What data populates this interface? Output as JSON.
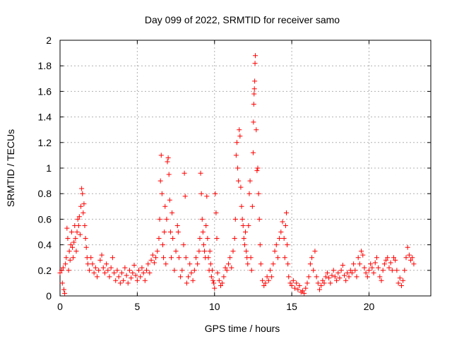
{
  "chart_data": {
    "type": "scatter",
    "title": "Day 099 of 2022, SRMTID for receiver samo",
    "xlabel": "GPS time / hours",
    "ylabel": "SRMTID / TECUs",
    "xlim": [
      0,
      24
    ],
    "ylim": [
      0,
      2
    ],
    "xticks": [
      0,
      5,
      10,
      15,
      20
    ],
    "xtick_labels": [
      "0",
      "5",
      "10",
      "15",
      "20"
    ],
    "yticks": [
      0,
      0.2,
      0.4,
      0.6,
      0.8,
      1,
      1.2,
      1.4,
      1.6,
      1.8,
      2
    ],
    "ytick_labels": [
      "0",
      "0.2",
      "0.4",
      "0.6",
      "0.8",
      "1",
      "1.2",
      "1.4",
      "1.6",
      "1.8",
      "2"
    ],
    "grid": true,
    "marker": "+",
    "series_color": "#ff0000",
    "series": [
      {
        "name": "SRMTID",
        "points": [
          [
            0.0,
            0.18
          ],
          [
            0.1,
            0.2
          ],
          [
            0.15,
            0.1
          ],
          [
            0.2,
            0.22
          ],
          [
            0.25,
            0.05
          ],
          [
            0.3,
            0.02
          ],
          [
            0.35,
            0.25
          ],
          [
            0.4,
            0.3
          ],
          [
            0.45,
            0.53
          ],
          [
            0.5,
            0.45
          ],
          [
            0.55,
            0.2
          ],
          [
            0.6,
            0.35
          ],
          [
            0.65,
            0.28
          ],
          [
            0.7,
            0.4
          ],
          [
            0.75,
            0.5
          ],
          [
            0.8,
            0.38
          ],
          [
            0.85,
            0.3
          ],
          [
            0.9,
            0.42
          ],
          [
            0.95,
            0.55
          ],
          [
            1.0,
            0.45
          ],
          [
            1.05,
            0.35
          ],
          [
            1.1,
            0.5
          ],
          [
            1.15,
            0.6
          ],
          [
            1.2,
            0.55
          ],
          [
            1.25,
            0.62
          ],
          [
            1.3,
            0.48
          ],
          [
            1.35,
            0.7
          ],
          [
            1.4,
            0.84
          ],
          [
            1.45,
            0.8
          ],
          [
            1.5,
            0.65
          ],
          [
            1.55,
            0.72
          ],
          [
            1.6,
            0.55
          ],
          [
            1.65,
            0.45
          ],
          [
            1.7,
            0.38
          ],
          [
            1.75,
            0.3
          ],
          [
            1.8,
            0.25
          ],
          [
            1.9,
            0.2
          ],
          [
            2.0,
            0.3
          ],
          [
            2.1,
            0.25
          ],
          [
            2.2,
            0.18
          ],
          [
            2.3,
            0.22
          ],
          [
            2.4,
            0.15
          ],
          [
            2.5,
            0.2
          ],
          [
            2.6,
            0.28
          ],
          [
            2.7,
            0.32
          ],
          [
            2.8,
            0.22
          ],
          [
            2.9,
            0.18
          ],
          [
            3.0,
            0.25
          ],
          [
            3.1,
            0.2
          ],
          [
            3.2,
            0.15
          ],
          [
            3.3,
            0.22
          ],
          [
            3.4,
            0.3
          ],
          [
            3.5,
            0.18
          ],
          [
            3.6,
            0.12
          ],
          [
            3.7,
            0.2
          ],
          [
            3.8,
            0.15
          ],
          [
            3.9,
            0.1
          ],
          [
            4.0,
            0.18
          ],
          [
            4.1,
            0.12
          ],
          [
            4.2,
            0.22
          ],
          [
            4.3,
            0.16
          ],
          [
            4.4,
            0.1
          ],
          [
            4.5,
            0.2
          ],
          [
            4.6,
            0.14
          ],
          [
            4.7,
            0.18
          ],
          [
            4.8,
            0.24
          ],
          [
            4.9,
            0.16
          ],
          [
            5.0,
            0.12
          ],
          [
            5.1,
            0.2
          ],
          [
            5.2,
            0.15
          ],
          [
            5.3,
            0.22
          ],
          [
            5.4,
            0.18
          ],
          [
            5.5,
            0.12
          ],
          [
            5.6,
            0.2
          ],
          [
            5.7,
            0.25
          ],
          [
            5.8,
            0.18
          ],
          [
            5.9,
            0.28
          ],
          [
            6.0,
            0.32
          ],
          [
            6.1,
            0.26
          ],
          [
            6.2,
            0.3
          ],
          [
            6.3,
            0.35
          ],
          [
            6.4,
            0.45
          ],
          [
            6.45,
            0.6
          ],
          [
            6.5,
            0.9
          ],
          [
            6.55,
            1.1
          ],
          [
            6.6,
            0.8
          ],
          [
            6.65,
            0.4
          ],
          [
            6.7,
            0.3
          ],
          [
            6.75,
            0.5
          ],
          [
            6.8,
            0.7
          ],
          [
            6.85,
            0.25
          ],
          [
            6.9,
            0.6
          ],
          [
            6.95,
            1.05
          ],
          [
            7.0,
            1.08
          ],
          [
            7.05,
            0.95
          ],
          [
            7.1,
            0.75
          ],
          [
            7.15,
            0.5
          ],
          [
            7.2,
            0.3
          ],
          [
            7.25,
            0.65
          ],
          [
            7.3,
            0.45
          ],
          [
            7.4,
            0.2
          ],
          [
            7.5,
            0.35
          ],
          [
            7.6,
            0.55
          ],
          [
            7.65,
            0.5
          ],
          [
            7.7,
            0.3
          ],
          [
            7.8,
            0.15
          ],
          [
            7.9,
            0.2
          ],
          [
            8.0,
            0.4
          ],
          [
            8.05,
            0.96
          ],
          [
            8.1,
            0.78
          ],
          [
            8.15,
            0.3
          ],
          [
            8.2,
            0.1
          ],
          [
            8.3,
            0.15
          ],
          [
            8.4,
            0.25
          ],
          [
            8.5,
            0.18
          ],
          [
            8.6,
            0.12
          ],
          [
            8.7,
            0.2
          ],
          [
            8.8,
            0.3
          ],
          [
            8.9,
            0.25
          ],
          [
            9.0,
            0.35
          ],
          [
            9.05,
            0.45
          ],
          [
            9.1,
            0.96
          ],
          [
            9.15,
            0.8
          ],
          [
            9.2,
            0.6
          ],
          [
            9.25,
            0.5
          ],
          [
            9.3,
            0.4
          ],
          [
            9.35,
            0.35
          ],
          [
            9.4,
            0.3
          ],
          [
            9.45,
            0.55
          ],
          [
            9.5,
            0.78
          ],
          [
            9.55,
            0.45
          ],
          [
            9.6,
            0.3
          ],
          [
            9.65,
            0.2
          ],
          [
            9.7,
            0.35
          ],
          [
            9.75,
            0.25
          ],
          [
            9.8,
            0.15
          ],
          [
            9.85,
            0.2
          ],
          [
            9.9,
            0.12
          ],
          [
            9.95,
            0.1
          ],
          [
            10.0,
            0.06
          ],
          [
            10.05,
            0.8
          ],
          [
            10.1,
            0.65
          ],
          [
            10.15,
            0.45
          ],
          [
            10.2,
            0.18
          ],
          [
            10.3,
            0.12
          ],
          [
            10.4,
            0.08
          ],
          [
            10.5,
            0.1
          ],
          [
            10.6,
            0.15
          ],
          [
            10.7,
            0.22
          ],
          [
            10.8,
            0.2
          ],
          [
            10.9,
            0.25
          ],
          [
            11.0,
            0.3
          ],
          [
            11.1,
            0.22
          ],
          [
            11.2,
            0.35
          ],
          [
            11.3,
            0.45
          ],
          [
            11.35,
            0.6
          ],
          [
            11.4,
            1.1
          ],
          [
            11.45,
            1.2
          ],
          [
            11.5,
            1.0
          ],
          [
            11.55,
            0.9
          ],
          [
            11.6,
            1.3
          ],
          [
            11.65,
            1.25
          ],
          [
            11.7,
            0.85
          ],
          [
            11.75,
            0.7
          ],
          [
            11.8,
            0.6
          ],
          [
            11.85,
            0.55
          ],
          [
            11.9,
            0.45
          ],
          [
            11.95,
            0.4
          ],
          [
            12.0,
            0.5
          ],
          [
            12.05,
            0.35
          ],
          [
            12.1,
            0.3
          ],
          [
            12.15,
            0.25
          ],
          [
            12.2,
            0.55
          ],
          [
            12.25,
            0.8
          ],
          [
            12.3,
            0.9
          ],
          [
            12.35,
            0.3
          ],
          [
            12.4,
            0.2
          ],
          [
            12.45,
            0.7
          ],
          [
            12.5,
            1.12
          ],
          [
            12.52,
            1.36
          ],
          [
            12.54,
            1.5
          ],
          [
            12.56,
            1.58
          ],
          [
            12.58,
            1.62
          ],
          [
            12.6,
            1.68
          ],
          [
            12.62,
            1.82
          ],
          [
            12.64,
            1.88
          ],
          [
            12.7,
            1.3
          ],
          [
            12.75,
            0.98
          ],
          [
            12.8,
            1.0
          ],
          [
            12.85,
            0.8
          ],
          [
            12.9,
            0.6
          ],
          [
            12.95,
            0.4
          ],
          [
            13.0,
            0.25
          ],
          [
            13.1,
            0.12
          ],
          [
            13.2,
            0.08
          ],
          [
            13.3,
            0.1
          ],
          [
            13.4,
            0.15
          ],
          [
            13.5,
            0.12
          ],
          [
            13.6,
            0.2
          ],
          [
            13.7,
            0.15
          ],
          [
            13.8,
            0.25
          ],
          [
            13.9,
            0.35
          ],
          [
            14.0,
            0.4
          ],
          [
            14.1,
            0.3
          ],
          [
            14.2,
            0.45
          ],
          [
            14.3,
            0.5
          ],
          [
            14.4,
            0.58
          ],
          [
            14.5,
            0.45
          ],
          [
            14.55,
            0.3
          ],
          [
            14.6,
            0.55
          ],
          [
            14.65,
            0.65
          ],
          [
            14.7,
            0.4
          ],
          [
            14.75,
            0.25
          ],
          [
            14.8,
            0.15
          ],
          [
            14.9,
            0.1
          ],
          [
            15.0,
            0.08
          ],
          [
            15.1,
            0.12
          ],
          [
            15.2,
            0.06
          ],
          [
            15.3,
            0.1
          ],
          [
            15.4,
            0.05
          ],
          [
            15.5,
            0.08
          ],
          [
            15.6,
            0.03
          ],
          [
            15.7,
            0.04
          ],
          [
            15.8,
            0.02
          ],
          [
            15.9,
            0.06
          ],
          [
            16.0,
            0.1
          ],
          [
            16.1,
            0.15
          ],
          [
            16.2,
            0.25
          ],
          [
            16.3,
            0.3
          ],
          [
            16.4,
            0.2
          ],
          [
            16.5,
            0.35
          ],
          [
            16.6,
            0.15
          ],
          [
            16.7,
            0.1
          ],
          [
            16.8,
            0.05
          ],
          [
            16.9,
            0.08
          ],
          [
            17.0,
            0.12
          ],
          [
            17.1,
            0.1
          ],
          [
            17.2,
            0.15
          ],
          [
            17.3,
            0.18
          ],
          [
            17.4,
            0.14
          ],
          [
            17.5,
            0.1
          ],
          [
            17.6,
            0.16
          ],
          [
            17.7,
            0.2
          ],
          [
            17.8,
            0.15
          ],
          [
            17.9,
            0.12
          ],
          [
            18.0,
            0.18
          ],
          [
            18.1,
            0.14
          ],
          [
            18.2,
            0.2
          ],
          [
            18.3,
            0.24
          ],
          [
            18.4,
            0.16
          ],
          [
            18.5,
            0.12
          ],
          [
            18.6,
            0.18
          ],
          [
            18.7,
            0.15
          ],
          [
            18.8,
            0.2
          ],
          [
            18.9,
            0.18
          ],
          [
            19.0,
            0.25
          ],
          [
            19.1,
            0.2
          ],
          [
            19.2,
            0.15
          ],
          [
            19.3,
            0.3
          ],
          [
            19.4,
            0.25
          ],
          [
            19.5,
            0.35
          ],
          [
            19.6,
            0.32
          ],
          [
            19.7,
            0.22
          ],
          [
            19.8,
            0.18
          ],
          [
            19.9,
            0.15
          ],
          [
            20.0,
            0.2
          ],
          [
            20.1,
            0.25
          ],
          [
            20.2,
            0.22
          ],
          [
            20.3,
            0.18
          ],
          [
            20.4,
            0.26
          ],
          [
            20.5,
            0.3
          ],
          [
            20.6,
            0.22
          ],
          [
            20.7,
            0.15
          ],
          [
            20.8,
            0.12
          ],
          [
            20.9,
            0.2
          ],
          [
            21.0,
            0.25
          ],
          [
            21.1,
            0.28
          ],
          [
            21.2,
            0.3
          ],
          [
            21.3,
            0.22
          ],
          [
            21.4,
            0.26
          ],
          [
            21.5,
            0.2
          ],
          [
            21.6,
            0.3
          ],
          [
            21.7,
            0.28
          ],
          [
            21.8,
            0.2
          ],
          [
            21.9,
            0.1
          ],
          [
            22.0,
            0.14
          ],
          [
            22.1,
            0.08
          ],
          [
            22.2,
            0.12
          ],
          [
            22.3,
            0.2
          ],
          [
            22.4,
            0.3
          ],
          [
            22.5,
            0.38
          ],
          [
            22.6,
            0.32
          ],
          [
            22.7,
            0.28
          ],
          [
            22.8,
            0.3
          ],
          [
            22.9,
            0.25
          ]
        ]
      }
    ]
  }
}
